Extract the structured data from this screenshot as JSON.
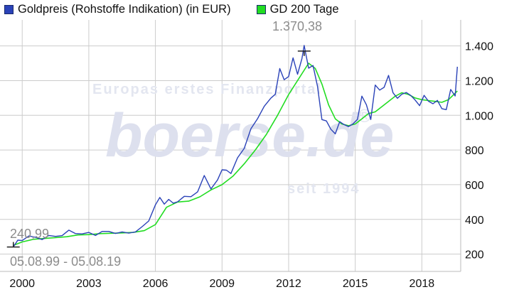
{
  "legend": {
    "series1_label": "Goldpreis (Rohstoffe Indikation) (in EUR)",
    "series2_label": "GD 200 Tage"
  },
  "colors": {
    "gold": "#2a42b8",
    "gd200": "#22dd22",
    "grid": "#cccccc"
  },
  "watermark": {
    "line1": "Europas erstes Finanzportal",
    "brand": "boerse.de",
    "registered": "®",
    "since": "seit 1994"
  },
  "annotations": {
    "max_label": "1.370,38",
    "min_label": "240,99",
    "date_range": "05.08.99 - 05.08.19"
  },
  "chart_data": {
    "type": "line",
    "title": "",
    "xlabel": "",
    "ylabel": "",
    "xlim": [
      1999.0,
      2019.75
    ],
    "ylim": [
      100,
      1550
    ],
    "x_ticks": [
      2000,
      2003,
      2006,
      2009,
      2012,
      2015,
      2018
    ],
    "x_tick_labels": [
      "2000",
      "2003",
      "2006",
      "2009",
      "2012",
      "2015",
      "2018"
    ],
    "y_ticks": [
      200,
      400,
      600,
      800,
      1000,
      1200,
      1400
    ],
    "y_tick_labels": [
      "200",
      "400",
      "600",
      "800",
      "1.000",
      "1.200",
      "1.400"
    ],
    "grid": true,
    "legend_position": "top",
    "max_point": {
      "x": 2012.7,
      "y": 1370.38
    },
    "min_point": {
      "x": 1999.6,
      "y": 240.99
    },
    "series": [
      {
        "name": "Goldpreis (Rohstoffe Indikation) (in EUR)",
        "color": "#2a42b8",
        "x": [
          1999.6,
          1999.8,
          2000.0,
          2000.3,
          2000.6,
          2000.9,
          2001.2,
          2001.5,
          2001.8,
          2002.1,
          2002.4,
          2002.7,
          2003.0,
          2003.3,
          2003.6,
          2003.9,
          2004.2,
          2004.5,
          2004.8,
          2005.1,
          2005.4,
          2005.7,
          2006.0,
          2006.2,
          2006.4,
          2006.6,
          2006.8,
          2007.0,
          2007.3,
          2007.6,
          2007.9,
          2008.2,
          2008.5,
          2008.8,
          2009.0,
          2009.2,
          2009.4,
          2009.7,
          2010.0,
          2010.3,
          2010.6,
          2010.9,
          2011.2,
          2011.4,
          2011.6,
          2011.8,
          2012.0,
          2012.2,
          2012.4,
          2012.6,
          2012.7,
          2012.9,
          2013.1,
          2013.3,
          2013.5,
          2013.7,
          2013.9,
          2014.1,
          2014.3,
          2014.5,
          2014.7,
          2014.9,
          2015.1,
          2015.3,
          2015.5,
          2015.7,
          2015.9,
          2016.1,
          2016.3,
          2016.5,
          2016.7,
          2016.9,
          2017.1,
          2017.3,
          2017.5,
          2017.7,
          2017.9,
          2018.1,
          2018.3,
          2018.5,
          2018.7,
          2018.9,
          2019.1,
          2019.3,
          2019.5,
          2019.6
        ],
        "y": [
          241,
          275,
          285,
          300,
          295,
          290,
          300,
          305,
          310,
          330,
          325,
          315,
          320,
          315,
          325,
          330,
          325,
          320,
          325,
          330,
          350,
          400,
          480,
          520,
          500,
          505,
          495,
          510,
          520,
          540,
          560,
          640,
          590,
          620,
          680,
          700,
          650,
          760,
          820,
          900,
          1000,
          1050,
          1080,
          1150,
          1250,
          1200,
          1250,
          1300,
          1250,
          1340,
          1370,
          1300,
          1280,
          1150,
          1000,
          950,
          920,
          910,
          940,
          960,
          940,
          930,
          1000,
          1100,
          1050,
          1000,
          1150,
          1150,
          1180,
          1200,
          1150,
          1100,
          1100,
          1160,
          1100,
          1080,
          1080,
          1090,
          1090,
          1080,
          1060,
          1060,
          1030,
          1130,
          1140,
          1280
        ]
      },
      {
        "name": "GD 200 Tage",
        "color": "#22dd22",
        "x": [
          1999.6,
          2000.0,
          2000.5,
          2001.0,
          2001.5,
          2002.0,
          2002.5,
          2003.0,
          2003.5,
          2004.0,
          2004.5,
          2005.0,
          2005.5,
          2006.0,
          2006.5,
          2007.0,
          2007.5,
          2008.0,
          2008.5,
          2009.0,
          2009.5,
          2010.0,
          2010.5,
          2011.0,
          2011.5,
          2012.0,
          2012.5,
          2012.9,
          2013.2,
          2013.5,
          2013.8,
          2014.1,
          2014.4,
          2014.7,
          2015.0,
          2015.3,
          2015.6,
          2015.9,
          2016.2,
          2016.5,
          2016.8,
          2017.1,
          2017.4,
          2017.7,
          2018.0,
          2018.3,
          2018.6,
          2018.9,
          2019.2,
          2019.6
        ],
        "y": [
          250,
          270,
          285,
          290,
          295,
          300,
          310,
          312,
          318,
          320,
          322,
          325,
          335,
          370,
          470,
          500,
          505,
          530,
          570,
          600,
          650,
          720,
          800,
          890,
          1000,
          1120,
          1220,
          1300,
          1270,
          1180,
          1060,
          980,
          950,
          940,
          950,
          980,
          1010,
          1020,
          1050,
          1080,
          1110,
          1130,
          1120,
          1100,
          1090,
          1085,
          1080,
          1075,
          1090,
          1140
        ]
      }
    ]
  }
}
